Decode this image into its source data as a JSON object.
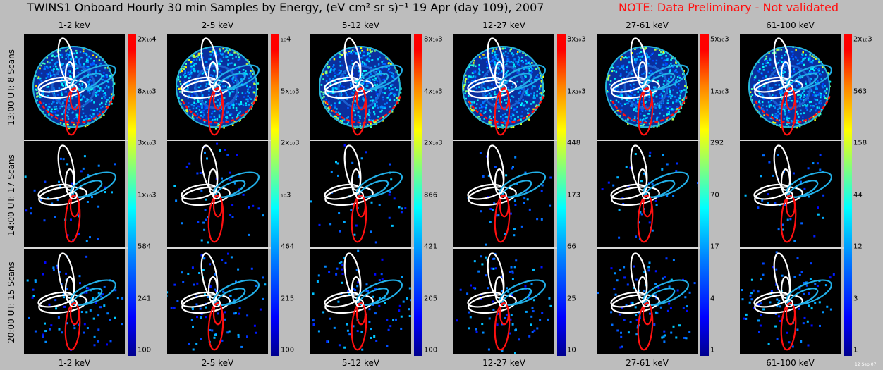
{
  "figure": {
    "title": "TWINS1 Onboard Hourly 30 min Samples by Energy,  (eV cm² sr s)⁻¹ 19 Apr (day 109), 2007",
    "note": "NOTE: Data Preliminary - Not validated",
    "stamp": "12 Sep 07"
  },
  "chart_data": {
    "type": "heatmap",
    "title": "TWINS1 Onboard Hourly 30 min Samples by Energy,  (eV cm² sr s)⁻¹ 19 Apr (day 109), 2007",
    "units": "(eV cm² sr s)⁻¹",
    "energy_bands": [
      "1-2 keV",
      "2-5 keV",
      "5-12 keV",
      "12-27 keV",
      "27-61 keV",
      "61-100 keV"
    ],
    "time_rows": [
      "13:00 UT: 8 Scans",
      "14:00 UT: 17 Scans",
      "20:00 UT: 15 Scans"
    ],
    "colorscale": "rainbow",
    "colorbar_scale": "log",
    "colorbar_ticks": [
      [
        "100",
        "241",
        "584",
        "1x₁₀3",
        "3x₁₀3",
        "8x₁₀3",
        "2x₁₀4"
      ],
      [
        "100",
        "215",
        "464",
        "₁₀3",
        "2x₁₀3",
        "5x₁₀3",
        "₁₀4"
      ],
      [
        "100",
        "205",
        "421",
        "866",
        "2x₁₀3",
        "4x₁₀3",
        "8x₁₀3"
      ],
      [
        "10",
        "25",
        "66",
        "173",
        "448",
        "1x₁₀3",
        "3x₁₀3"
      ],
      [
        "1",
        "4",
        "17",
        "70",
        "292",
        "1x₁₀3",
        "5x₁₀3"
      ],
      [
        "1",
        "3",
        "12",
        "44",
        "158",
        "563",
        "2x₁₀3"
      ]
    ],
    "overlay_colors": {
      "white": "#ffffff",
      "cyan": "#22b0e8",
      "red": "#ff1010"
    }
  }
}
